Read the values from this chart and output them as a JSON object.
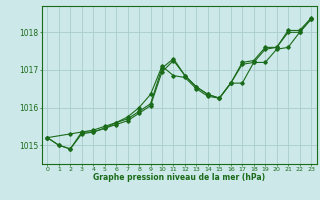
{
  "background_color": "#cce8e8",
  "grid_color": "#aacccc",
  "line_color": "#1a6b1a",
  "text_color": "#1a6b1a",
  "xlabel": "Graphe pression niveau de la mer (hPa)",
  "ylim": [
    1014.5,
    1018.7
  ],
  "xlim": [
    -0.5,
    23.5
  ],
  "yticks": [
    1015,
    1016,
    1017,
    1018
  ],
  "xticks": [
    0,
    1,
    2,
    3,
    4,
    5,
    6,
    7,
    8,
    9,
    10,
    11,
    12,
    13,
    14,
    15,
    16,
    17,
    18,
    19,
    20,
    21,
    22,
    23
  ],
  "series1_x": [
    0,
    1,
    2,
    3,
    4,
    5,
    6,
    7,
    8,
    9,
    10,
    11,
    12,
    13,
    14,
    15,
    16,
    17,
    18,
    19,
    20,
    21,
    22,
    23
  ],
  "series1_y": [
    1015.2,
    1015.0,
    1014.9,
    1015.35,
    1015.35,
    1015.45,
    1015.55,
    1015.65,
    1015.85,
    1016.05,
    1016.95,
    1017.25,
    1016.85,
    1016.55,
    1016.35,
    1016.25,
    1016.65,
    1016.65,
    1017.2,
    1017.2,
    1017.55,
    1017.6,
    1018.0,
    1018.35
  ],
  "series2_x": [
    0,
    1,
    2,
    3,
    4,
    5,
    6,
    7,
    8,
    9,
    10,
    11,
    12,
    13,
    14,
    15,
    16,
    17,
    18,
    19,
    20,
    21,
    22,
    23
  ],
  "series2_y": [
    1015.2,
    1015.0,
    1014.9,
    1015.3,
    1015.35,
    1015.45,
    1015.6,
    1015.75,
    1016.0,
    1016.35,
    1017.1,
    1016.85,
    1016.8,
    1016.5,
    1016.3,
    1016.25,
    1016.65,
    1017.15,
    1017.2,
    1017.55,
    1017.6,
    1018.0,
    1018.0,
    1018.35
  ],
  "series3_x": [
    0,
    2,
    3,
    4,
    5,
    6,
    7,
    8,
    9,
    10,
    11,
    12,
    13,
    14,
    15,
    16,
    17,
    18,
    19,
    20,
    21,
    22,
    23
  ],
  "series3_y": [
    1015.2,
    1015.3,
    1015.35,
    1015.4,
    1015.5,
    1015.6,
    1015.7,
    1015.9,
    1016.1,
    1017.05,
    1017.3,
    1016.85,
    1016.55,
    1016.35,
    1016.25,
    1016.65,
    1017.2,
    1017.25,
    1017.6,
    1017.6,
    1018.05,
    1018.05,
    1018.38
  ]
}
